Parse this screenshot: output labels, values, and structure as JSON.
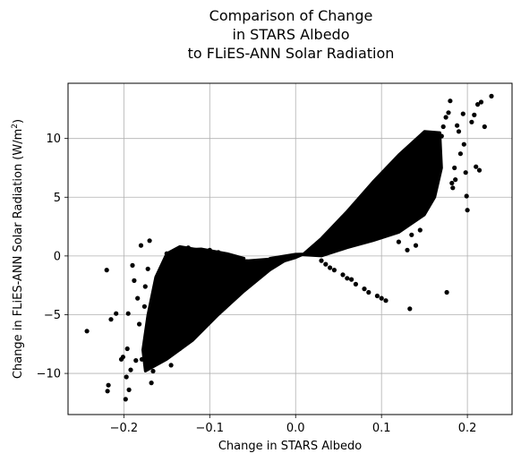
{
  "chart_data": {
    "type": "scatter",
    "title_lines": [
      "Comparison of Change",
      "in STARS Albedo",
      "to FLiES-ANN Solar Radiation"
    ],
    "xlabel": "Change in STARS Albedo",
    "ylabel_text": "Change in FLiES-ANN Solar Radiation (W/m",
    "ylabel_sup": "2",
    "ylabel_close": ")",
    "xlim": [
      -0.265,
      0.252
    ],
    "ylim": [
      -13.5,
      14.7
    ],
    "xticks": [
      -0.2,
      -0.1,
      0.0,
      0.1,
      0.2
    ],
    "xtick_labels": [
      "−0.2",
      "−0.1",
      "0.0",
      "0.1",
      "0.2"
    ],
    "yticks": [
      -10,
      -5,
      0,
      5,
      10
    ],
    "ytick_labels": [
      "−10",
      "−5",
      "0",
      "5",
      "10"
    ],
    "grid": true,
    "marker_color": "#000000",
    "clusters_note": "dense band from about (-0.17,-9) through origin to (0.17,10)",
    "points": [
      [
        -0.243,
        -6.4
      ],
      [
        -0.22,
        -1.2
      ],
      [
        -0.218,
        -11.0
      ],
      [
        -0.219,
        -11.5
      ],
      [
        -0.215,
        -5.4
      ],
      [
        -0.209,
        -4.9
      ],
      [
        -0.203,
        -8.8
      ],
      [
        -0.201,
        -8.6
      ],
      [
        -0.198,
        -12.2
      ],
      [
        -0.197,
        -10.3
      ],
      [
        -0.196,
        -7.9
      ],
      [
        -0.195,
        -4.9
      ],
      [
        -0.194,
        -11.4
      ],
      [
        -0.192,
        -9.7
      ],
      [
        -0.19,
        -0.8
      ],
      [
        -0.188,
        -2.1
      ],
      [
        -0.186,
        -8.9
      ],
      [
        -0.184,
        -3.6
      ],
      [
        -0.182,
        -5.8
      ],
      [
        -0.18,
        0.9
      ],
      [
        -0.179,
        -8.8
      ],
      [
        -0.176,
        -4.3
      ],
      [
        -0.175,
        -2.6
      ],
      [
        -0.172,
        -1.1
      ],
      [
        -0.17,
        1.3
      ],
      [
        -0.168,
        -10.8
      ],
      [
        -0.166,
        -9.8
      ],
      [
        -0.164,
        -7.2
      ],
      [
        -0.16,
        -6.1
      ],
      [
        -0.155,
        -3.2
      ],
      [
        -0.15,
        0.2
      ],
      [
        -0.148,
        -8.3
      ],
      [
        -0.145,
        -9.3
      ],
      [
        -0.14,
        -1.5
      ],
      [
        -0.135,
        -7.9
      ],
      [
        -0.13,
        -6.0
      ],
      [
        -0.125,
        0.7
      ],
      [
        -0.12,
        -5.4
      ],
      [
        -0.115,
        -4.7
      ],
      [
        -0.11,
        0.4
      ],
      [
        -0.1,
        0.5
      ],
      [
        -0.09,
        0.3
      ],
      [
        -0.08,
        -0.1
      ],
      [
        -0.07,
        -0.2
      ],
      [
        0.0,
        0.0
      ],
      [
        0.03,
        -0.4
      ],
      [
        0.035,
        -0.7
      ],
      [
        0.04,
        -1.0
      ],
      [
        0.045,
        -1.2
      ],
      [
        0.055,
        -1.6
      ],
      [
        0.06,
        -1.9
      ],
      [
        0.065,
        -2.0
      ],
      [
        0.07,
        -2.4
      ],
      [
        0.08,
        -2.8
      ],
      [
        0.085,
        -3.1
      ],
      [
        0.095,
        -3.4
      ],
      [
        0.1,
        -3.6
      ],
      [
        0.105,
        -3.8
      ],
      [
        0.133,
        -4.5
      ],
      [
        0.176,
        -3.1
      ],
      [
        0.12,
        1.2
      ],
      [
        0.13,
        0.5
      ],
      [
        0.125,
        2.5
      ],
      [
        0.135,
        1.8
      ],
      [
        0.14,
        0.9
      ],
      [
        0.145,
        2.2
      ],
      [
        0.16,
        8.9
      ],
      [
        0.165,
        9.1
      ],
      [
        0.17,
        10.2
      ],
      [
        0.172,
        11.0
      ],
      [
        0.175,
        11.8
      ],
      [
        0.178,
        12.2
      ],
      [
        0.18,
        13.2
      ],
      [
        0.182,
        6.2
      ],
      [
        0.183,
        5.8
      ],
      [
        0.185,
        7.5
      ],
      [
        0.186,
        6.5
      ],
      [
        0.188,
        11.1
      ],
      [
        0.19,
        10.6
      ],
      [
        0.192,
        8.7
      ],
      [
        0.195,
        12.1
      ],
      [
        0.196,
        9.5
      ],
      [
        0.198,
        7.1
      ],
      [
        0.199,
        5.1
      ],
      [
        0.2,
        3.9
      ],
      [
        0.205,
        11.4
      ],
      [
        0.208,
        12.0
      ],
      [
        0.21,
        7.6
      ],
      [
        0.212,
        12.9
      ],
      [
        0.214,
        7.3
      ],
      [
        0.216,
        13.1
      ],
      [
        0.22,
        11.0
      ],
      [
        0.228,
        13.6
      ]
    ]
  }
}
